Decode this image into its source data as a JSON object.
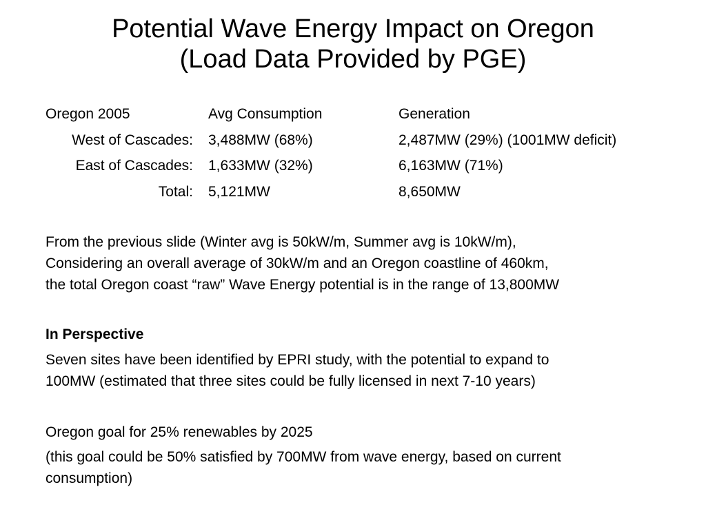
{
  "title": {
    "line1": "Potential Wave Energy Impact on Oregon",
    "line2": "(Load Data Provided by PGE)"
  },
  "table": {
    "header": {
      "label": "Oregon 2005",
      "consumption": "Avg Consumption",
      "generation": "Generation"
    },
    "rows": [
      {
        "label": "West of Cascades:",
        "consumption": "3,488MW (68%)",
        "generation": "2,487MW (29%) (1001MW deficit)"
      },
      {
        "label": "East of Cascades:",
        "consumption": "1,633MW (32%)",
        "generation": "6,163MW (71%)"
      },
      {
        "label": "Total:",
        "consumption": "5,121MW",
        "generation": "8,650MW"
      }
    ]
  },
  "paragraphs": {
    "potential_line1": "From the previous slide (Winter avg is 50kW/m, Summer avg is 10kW/m),",
    "potential_line2": "Considering an overall average of 30kW/m and an Oregon coastline of 460km,",
    "potential_line3": "the total Oregon coast “raw” Wave Energy potential is in the range of 13,800MW",
    "perspective_heading": "In Perspective",
    "sites_line1": "Seven sites have been identified by EPRI study, with the potential to expand to",
    "sites_line2": "100MW (estimated that three sites could be fully licensed in next 7-10 years)",
    "goal": "Oregon goal for 25% renewables by 2025",
    "goal_note_line1": "(this goal could be 50% satisfied by 700MW from wave energy, based on current",
    "goal_note_line2": "consumption)"
  }
}
